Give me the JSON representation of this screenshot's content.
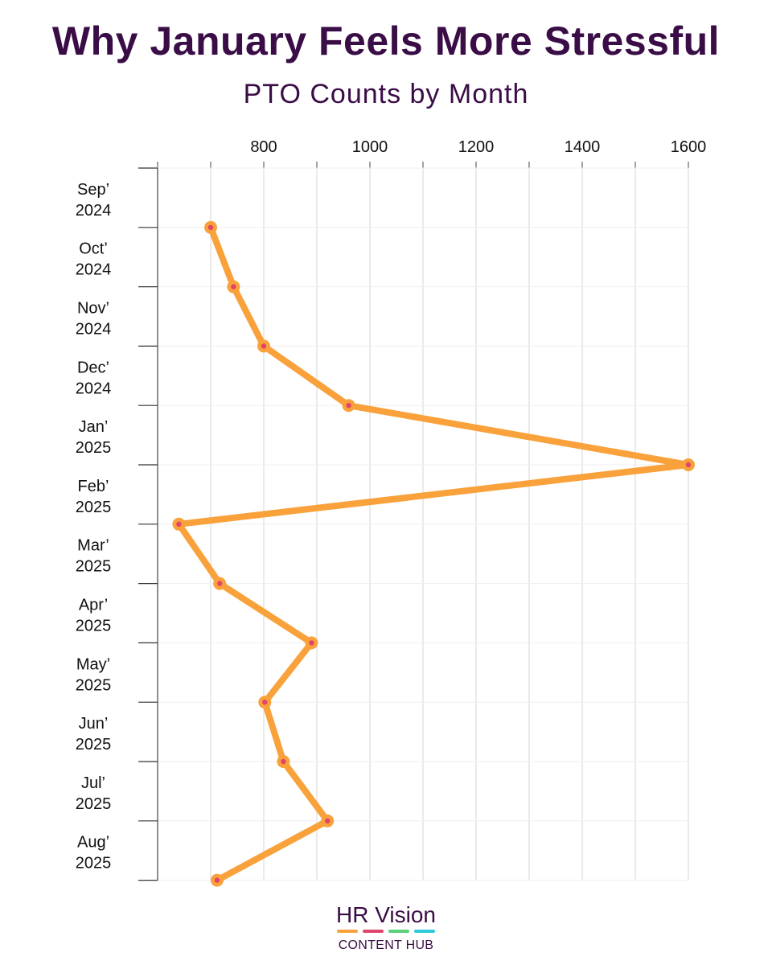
{
  "header": {
    "title": "Why January Feels More Stressful",
    "subtitle": "PTO Counts by Month"
  },
  "chart_data": {
    "type": "line",
    "orientation": "horizontal-values",
    "title": "PTO Counts by Month",
    "xlabel": "",
    "ylabel": "",
    "xlim": [
      600,
      1600
    ],
    "x_ticks": [
      800,
      1000,
      1200,
      1400,
      1600
    ],
    "grid": true,
    "categories": [
      "Sep’ 2024",
      "Oct’ 2024",
      "Nov’ 2024",
      "Dec’ 2024",
      "Jan’ 2025",
      "Feb’ 2025",
      "Mar’ 2025",
      "Apr’ 2025",
      "May’ 2025",
      "Jun’ 2025",
      "Jul’ 2025",
      "Aug’ 2025"
    ],
    "category_labels": [
      [
        "Sep’",
        "2024"
      ],
      [
        "Oct’",
        "2024"
      ],
      [
        "Nov’",
        "2024"
      ],
      [
        "Dec’",
        "2024"
      ],
      [
        "Jan’",
        "2025"
      ],
      [
        "Feb’",
        "2025"
      ],
      [
        "Mar’",
        "2025"
      ],
      [
        "Apr’",
        "2025"
      ],
      [
        "May’",
        "2025"
      ],
      [
        "Jun’",
        "2025"
      ],
      [
        "Jul’",
        "2025"
      ],
      [
        "Aug’",
        "2025"
      ]
    ],
    "series": [
      {
        "name": "PTO Counts",
        "values": [
          700,
          743,
          800,
          960,
          1600,
          640,
          717,
          890,
          802,
          837,
          920,
          712
        ]
      }
    ],
    "line_color": "#f9a13a",
    "marker_center_color": "#e0446a"
  },
  "logo": {
    "name": "HR Vision",
    "sub": "CONTENT HUB",
    "bar_colors": [
      "#f9a13a",
      "#e0446a",
      "#5ad07a",
      "#2fc9d8"
    ]
  }
}
